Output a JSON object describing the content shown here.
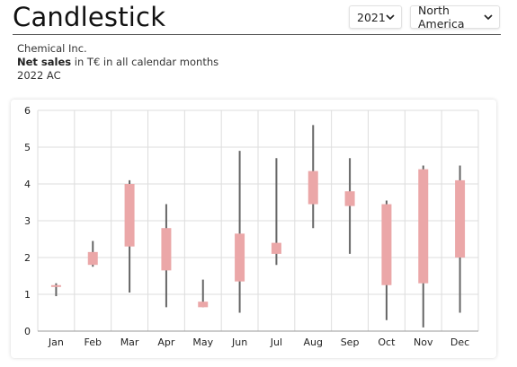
{
  "header": {
    "title": "Candlestick",
    "year_select": {
      "value": "2021"
    },
    "region_select": {
      "value": "North America"
    }
  },
  "subtitle": {
    "company": "Chemical Inc.",
    "measure_bold": "Net sales",
    "measure_rest": " in T€ in all calendar months",
    "scenario": "2022 AC"
  },
  "colors": {
    "candle_body": "#eba7a8",
    "wick": "#666666",
    "grid": "#dddddd"
  },
  "chart_data": {
    "type": "candlestick",
    "categories": [
      "Jan",
      "Feb",
      "Mar",
      "Apr",
      "May",
      "Jun",
      "Jul",
      "Aug",
      "Sep",
      "Oct",
      "Nov",
      "Dec"
    ],
    "ylim": [
      0,
      6
    ],
    "yticks": [
      0,
      1,
      2,
      3,
      4,
      5,
      6
    ],
    "grid": true,
    "series": [
      {
        "low": [
          0.95,
          1.75,
          1.05,
          0.65,
          0.65,
          0.5,
          1.8,
          2.8,
          2.1,
          0.3,
          0.1,
          0.5
        ],
        "high": [
          1.3,
          2.45,
          4.1,
          3.45,
          1.4,
          4.9,
          4.7,
          5.6,
          4.7,
          3.55,
          4.5,
          4.5
        ],
        "open": [
          1.2,
          2.15,
          2.3,
          1.65,
          0.65,
          1.35,
          2.1,
          3.45,
          3.4,
          1.25,
          1.3,
          2.0
        ],
        "close": [
          1.25,
          1.8,
          4.0,
          2.8,
          0.8,
          2.65,
          2.4,
          4.35,
          3.8,
          3.45,
          4.4,
          4.1
        ]
      }
    ]
  }
}
